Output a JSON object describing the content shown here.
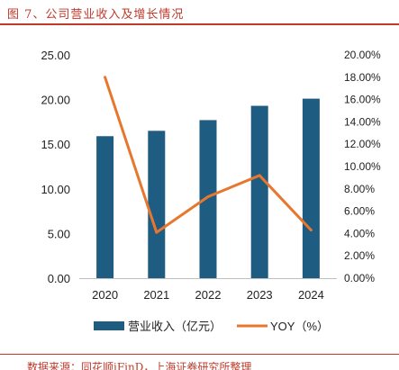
{
  "header": {
    "title": "图 7、公司营业收入及增长情况"
  },
  "footer": {
    "source": "数据来源：同花顺iFinD，上海证券研究所整理"
  },
  "chart_data": {
    "type": "bar",
    "categories": [
      "2020",
      "2021",
      "2022",
      "2023",
      "2024"
    ],
    "series": [
      {
        "name": "营业收入（亿元）",
        "type": "bar",
        "axis": "left",
        "color": "#1f5c82",
        "values": [
          15.9,
          16.5,
          17.7,
          19.3,
          20.1
        ]
      },
      {
        "name": "YOY（%）",
        "type": "line",
        "axis": "right",
        "color": "#e8772e",
        "values": [
          18.0,
          4.1,
          7.3,
          9.2,
          4.3
        ]
      }
    ],
    "y_left": {
      "min": 0,
      "max": 25,
      "step": 5,
      "ticks": [
        "0.00",
        "5.00",
        "10.00",
        "15.00",
        "20.00",
        "25.00"
      ]
    },
    "y_right": {
      "min": 0,
      "max": 20,
      "step": 2,
      "ticks": [
        "0.00%",
        "2.00%",
        "4.00%",
        "6.00%",
        "8.00%",
        "10.00%",
        "12.00%",
        "14.00%",
        "16.00%",
        "18.00%",
        "20.00%"
      ]
    },
    "legend_position": "bottom",
    "grid": false
  }
}
